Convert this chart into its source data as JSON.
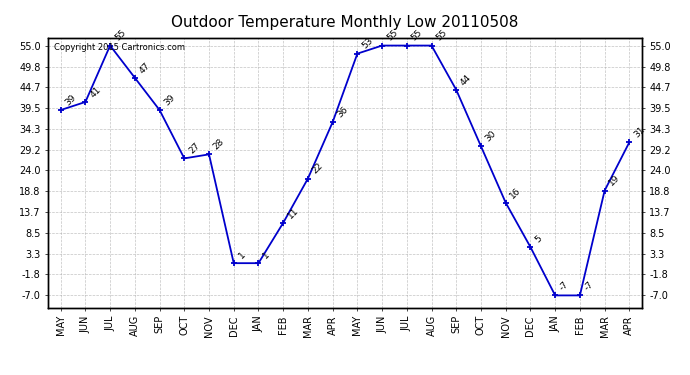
{
  "title": "Outdoor Temperature Monthly Low 20110508",
  "copyright": "Copyright 2015 Cartronics.com",
  "months": [
    "MAY",
    "JUN",
    "JUL",
    "AUG",
    "SEP",
    "OCT",
    "NOV",
    "DEC",
    "JAN",
    "FEB",
    "MAR",
    "APR",
    "MAY",
    "JUN",
    "JUL",
    "AUG",
    "SEP",
    "OCT",
    "NOV",
    "DEC",
    "JAN",
    "FEB",
    "MAR",
    "APR"
  ],
  "values": [
    39,
    41,
    55,
    47,
    39,
    27,
    28,
    1,
    1,
    11,
    22,
    36,
    53,
    55,
    55,
    55,
    44,
    30,
    16,
    5,
    -7,
    -7,
    19,
    31
  ],
  "yticks": [
    55.0,
    49.8,
    44.7,
    39.5,
    34.3,
    29.2,
    24.0,
    18.8,
    13.7,
    8.5,
    3.3,
    -1.8,
    -7.0
  ],
  "ymin": -10.0,
  "ymax": 57.0,
  "line_color": "#0000cc",
  "marker_color": "#0000cc",
  "bg_color": "#ffffff",
  "grid_color": "#aaaaaa",
  "title_fontsize": 11,
  "annot_fontsize": 6.5,
  "tick_fontsize": 7,
  "copyright_fontsize": 6
}
